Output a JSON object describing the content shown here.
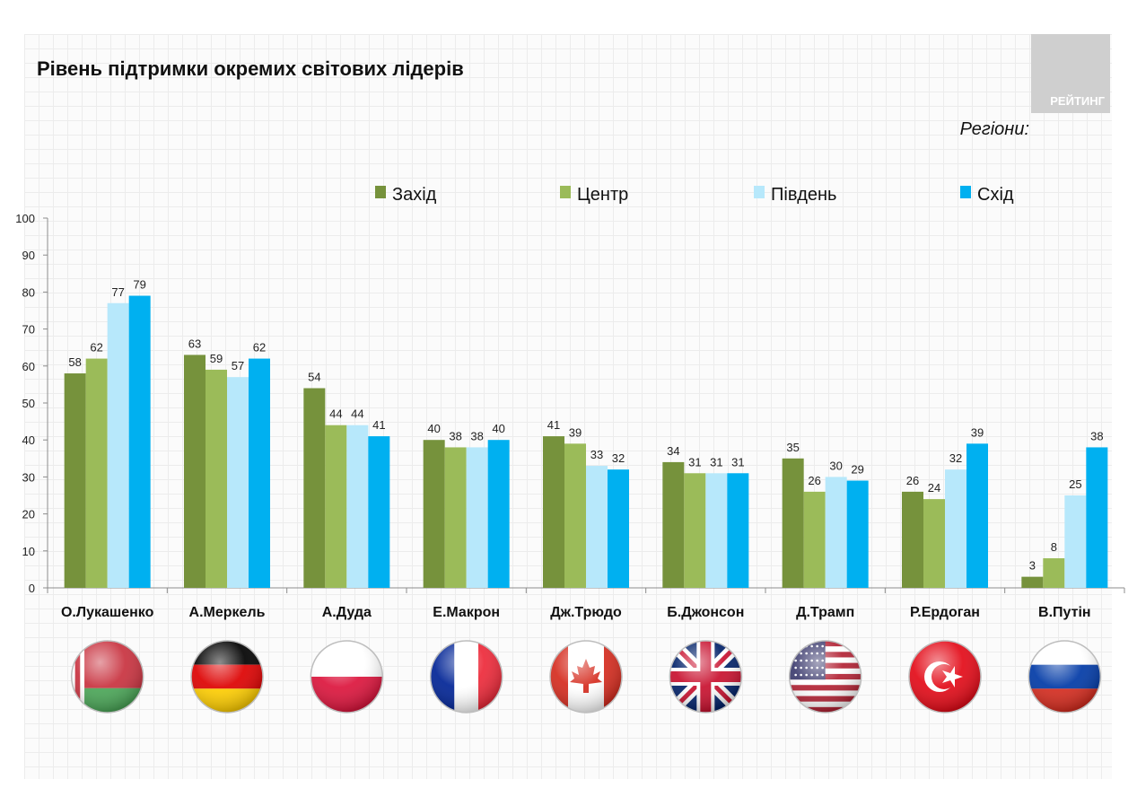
{
  "page": {
    "title": "Рівень підтримки окремих світових лідерів",
    "brand": "РЕЙТИНГ",
    "subtitle": "Регіони:"
  },
  "chart_data": {
    "type": "bar",
    "title": "Рівень підтримки окремих світових лідерів",
    "categories": [
      "О.Лукашенко",
      "А.Меркель",
      "А.Дуда",
      "Е.Макрон",
      "Дж.Трюдо",
      "Б.Джонсон",
      "Д.Трамп",
      "Р.Ердоган",
      "В.Путін"
    ],
    "series": [
      {
        "name": "Захід",
        "color": "#76923c",
        "values": [
          58,
          63,
          54,
          40,
          41,
          34,
          35,
          26,
          3
        ]
      },
      {
        "name": "Центр",
        "color": "#9bbb59",
        "values": [
          62,
          59,
          44,
          38,
          39,
          31,
          26,
          24,
          8
        ]
      },
      {
        "name": "Південь",
        "color": "#b7e8fb",
        "values": [
          77,
          57,
          44,
          38,
          33,
          31,
          30,
          32,
          25
        ]
      },
      {
        "name": "Схід",
        "color": "#00b0f0",
        "values": [
          79,
          62,
          41,
          40,
          32,
          31,
          29,
          39,
          38
        ]
      }
    ],
    "ylim": [
      0,
      100
    ],
    "yticks": [
      0,
      10,
      20,
      30,
      40,
      50,
      60,
      70,
      80,
      90,
      100
    ],
    "legend_position": "top",
    "grid": false,
    "flags": [
      "belarus-flag",
      "germany-flag",
      "poland-flag",
      "france-flag",
      "canada-flag",
      "uk-flag",
      "usa-flag",
      "turkey-flag",
      "russia-flag"
    ]
  }
}
